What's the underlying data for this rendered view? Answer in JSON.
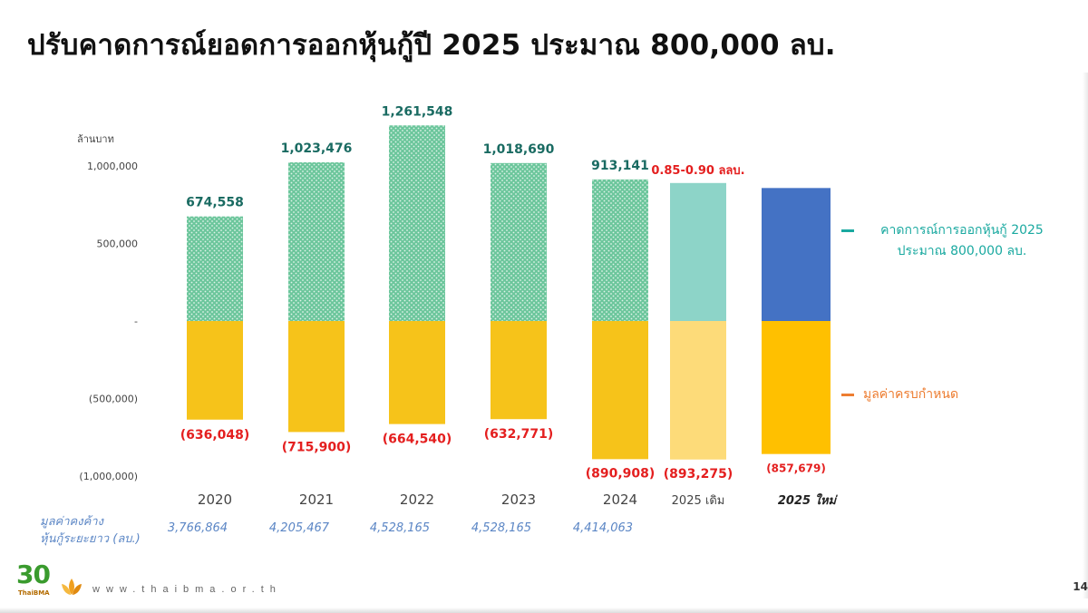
{
  "title": "ปรับคาดการณ์ยอดการออกหุ้นกู้ปี 2025 ประมาณ 800,000 ลบ.",
  "page_number": "14",
  "footer": {
    "logo_number": "30",
    "logo_text": "ThaiBMA",
    "url": "www.thaibma.or.th"
  },
  "outstanding": {
    "label_line1": "มูลค่าคงค้าง",
    "label_line2": "หุ้นกู้ระยะยาว (ลบ.)",
    "values": [
      "3,766,864",
      "4,205,467",
      "4,528,165",
      "4,528,165",
      "4,414,063"
    ]
  },
  "legend": {
    "issuance_line1": "คาดการณ์การออกหุ้นกู้ 2025",
    "issuance_line2": "ประมาณ 800,000 ลบ.",
    "maturity": "มูลค่าครบกำหนด"
  },
  "colors": {
    "issuance_hist": "#6cc69c",
    "issuance_hist_dots": "#dff3e9",
    "issuance_2025_orig": "#8dd4c8",
    "issuance_2025_new": "#4472c4",
    "maturity_hist": "#f6c31a",
    "maturity_2025_orig": "#fddb79",
    "maturity_2025_new": "#ffc000",
    "pos_label": "#1a6b62",
    "neg_label": "#e41f1f",
    "legend_issuance": "#1aa9a0",
    "legend_maturity": "#ed7d31",
    "axis_text": "#444444",
    "outstanding_text": "#5b86c5"
  },
  "chart_data": {
    "type": "bar",
    "unit_label": "ล้านบาท",
    "categories": [
      "2020",
      "2021",
      "2022",
      "2023",
      "2024",
      "2025 เดิม",
      "2025 ใหม่"
    ],
    "series": [
      {
        "role": "issuance",
        "values": [
          674558,
          1023476,
          1261548,
          1018690,
          913141,
          890000,
          857679
        ],
        "labels": [
          "674,558",
          "1,023,476",
          "1,261,548",
          "1,018,690",
          "913,141",
          "0.85-0.90 ลลบ.",
          ""
        ]
      },
      {
        "role": "maturity",
        "values": [
          -636048,
          -715900,
          -664540,
          -632771,
          -890908,
          -893275,
          -857679
        ],
        "labels": [
          "(636,048)",
          "(715,900)",
          "(664,540)",
          "(632,771)",
          "(890,908)",
          "(893,275)",
          "(857,679)"
        ]
      }
    ],
    "ylim": [
      -1000000,
      1300000
    ],
    "yticks": [
      {
        "value": 1000000,
        "label": "1,000,000"
      },
      {
        "value": 500000,
        "label": "500,000"
      },
      {
        "value": 0,
        "label": "-"
      },
      {
        "value": -500000,
        "label": "(500,000)"
      },
      {
        "value": -1000000,
        "label": "(1,000,000)"
      }
    ]
  }
}
